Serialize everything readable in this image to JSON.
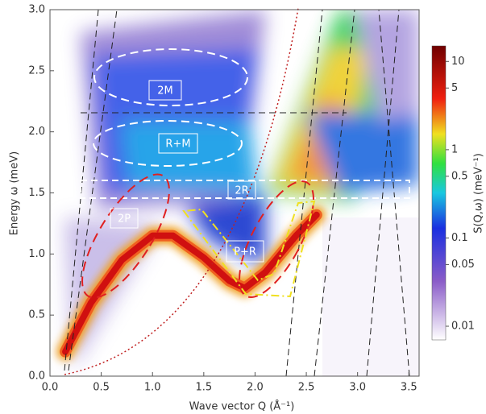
{
  "chart_data": {
    "type": "heatmap",
    "xlabel": "Wave vector Q  (Å⁻¹)",
    "ylabel": "Energy ω  (meV)",
    "xlim": [
      0,
      3.6
    ],
    "ylim": [
      0,
      3.0
    ],
    "xticks": [
      {
        "value": 0,
        "label": "0.0"
      },
      {
        "value": 0.5,
        "label": "0.5"
      },
      {
        "value": 1,
        "label": "1.0"
      },
      {
        "value": 1.5,
        "label": "1.5"
      },
      {
        "value": 2,
        "label": "2.0"
      },
      {
        "value": 2.5,
        "label": "2.5"
      },
      {
        "value": 3,
        "label": "3.0"
      },
      {
        "value": 3.5,
        "label": "3.5"
      }
    ],
    "yticks": [
      {
        "value": 0,
        "label": "0.0"
      },
      {
        "value": 0.5,
        "label": "0.5"
      },
      {
        "value": 1,
        "label": "1.0"
      },
      {
        "value": 1.5,
        "label": "1.5"
      },
      {
        "value": 2,
        "label": "2.0"
      },
      {
        "value": 2.5,
        "label": "2.5"
      },
      {
        "value": 3,
        "label": "3.0"
      }
    ],
    "series": [
      {
        "color": "#d01010",
        "x": [
          0.15,
          0.4,
          0.7,
          1.0,
          1.2,
          1.5,
          1.75,
          1.9,
          2.1,
          2.4,
          2.6
        ],
        "values": [
          0.2,
          0.6,
          0.95,
          1.15,
          1.15,
          0.97,
          0.78,
          0.72,
          0.85,
          1.15,
          1.32
        ]
      }
    ],
    "annotations": [
      "2M",
      "R+M",
      "2R",
      "2P",
      "P+R"
    ],
    "colorbar": {
      "label": "S(Q,ω)  (meV⁻¹)",
      "scale": "log",
      "lim": [
        0.007,
        15
      ],
      "ticks": [
        10,
        5,
        1,
        0.5,
        0.1,
        0.05,
        0.01
      ]
    }
  }
}
